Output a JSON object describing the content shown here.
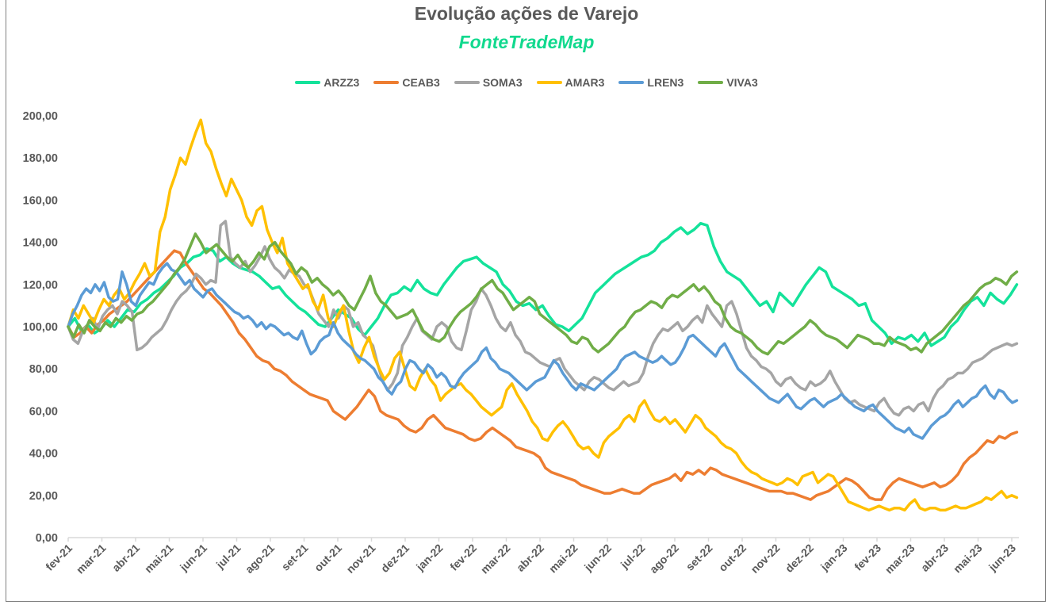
{
  "chart_data": {
    "type": "line",
    "title": "Evolução ações de Varejo",
    "subtitle": "FonteTradeMap",
    "xlabel": "",
    "ylabel": "",
    "ylim": [
      0,
      200
    ],
    "yticks": [
      "0,00",
      "20,00",
      "40,00",
      "60,00",
      "80,00",
      "100,00",
      "120,00",
      "140,00",
      "160,00",
      "180,00",
      "200,00"
    ],
    "ytick_values": [
      0,
      20,
      40,
      60,
      80,
      100,
      120,
      140,
      160,
      180,
      200
    ],
    "categories": [
      "fev-21",
      "mar-21",
      "abr-21",
      "mai-21",
      "jun-21",
      "jul-21",
      "ago-21",
      "set-21",
      "out-21",
      "nov-21",
      "dez-21",
      "jan-22",
      "fev-22",
      "mar-22",
      "abr-22",
      "mai-22",
      "jun-22",
      "jul-22",
      "ago-22",
      "set-22",
      "out-22",
      "nov-22",
      "dez-22",
      "jan-23",
      "fev-23",
      "mar-23",
      "abr-23",
      "mai-23",
      "jun-23"
    ],
    "x_unit": "month index (0 = fev-21), sampled every quarter month",
    "grid": false,
    "legend_position": "top",
    "series": [
      {
        "name": "ARZZ3",
        "color": "#14E29A",
        "values": [
          100,
          104,
          98,
          101,
          97,
          99,
          103,
          100,
          104,
          108,
          107,
          111,
          113,
          116,
          118,
          121,
          124,
          128,
          130,
          133,
          134,
          137,
          136,
          131,
          133,
          130,
          128,
          127,
          126,
          124,
          121,
          118,
          119,
          115,
          112,
          109,
          107,
          104,
          101,
          100,
          104,
          108,
          106,
          104,
          99,
          96,
          100,
          104,
          110,
          115,
          116,
          119,
          117,
          122,
          118,
          116,
          115,
          120,
          124,
          128,
          131,
          132,
          133,
          130,
          128,
          126,
          120,
          117,
          112,
          110,
          111,
          108,
          110,
          105,
          101,
          100,
          98,
          101,
          104,
          110,
          116,
          119,
          122,
          125,
          127,
          129,
          131,
          133,
          134,
          136,
          140,
          142,
          145,
          147,
          144,
          146,
          149,
          148,
          138,
          131,
          126,
          124,
          122,
          118,
          114,
          110,
          112,
          107,
          116,
          113,
          110,
          115,
          120,
          124,
          128,
          126,
          119,
          117,
          115,
          113,
          110,
          111,
          103,
          100,
          97,
          92,
          95,
          94,
          96,
          93,
          97,
          91,
          93,
          95,
          100,
          103,
          108,
          112,
          114,
          110,
          116,
          113,
          111,
          115,
          120
        ]
      },
      {
        "name": "CEAB3",
        "color": "#ED7D31",
        "values": [
          100,
          95,
          97,
          100,
          97,
          101,
          103,
          106,
          108,
          110,
          112,
          115,
          118,
          121,
          124,
          127,
          130,
          133,
          136,
          135,
          130,
          126,
          122,
          118,
          116,
          113,
          110,
          106,
          102,
          97,
          94,
          90,
          86,
          84,
          83,
          80,
          79,
          77,
          74,
          72,
          70,
          68,
          67,
          66,
          65,
          60,
          58,
          56,
          59,
          62,
          66,
          70,
          67,
          60,
          58,
          57,
          56,
          53,
          51,
          50,
          52,
          56,
          58,
          55,
          52,
          51,
          50,
          49,
          47,
          46,
          47,
          50,
          52,
          50,
          48,
          46,
          43,
          42,
          41,
          40,
          38,
          33,
          31,
          30,
          29,
          28,
          27,
          25,
          24,
          23,
          22,
          21,
          21,
          22,
          23,
          22,
          21,
          21,
          23,
          25,
          26,
          27,
          28,
          30,
          27,
          31,
          30,
          32,
          30,
          33,
          32,
          30,
          29,
          28,
          27,
          26,
          25,
          24,
          23,
          22,
          22,
          22,
          21,
          21,
          20,
          19,
          18,
          20,
          21,
          22,
          24,
          26,
          28,
          27,
          25,
          22,
          19,
          18,
          18,
          23,
          26,
          28,
          27,
          26,
          25,
          24,
          25,
          26,
          24,
          25,
          27,
          30,
          35,
          38,
          40,
          43,
          46,
          45,
          48,
          47,
          49,
          50
        ]
      },
      {
        "name": "SOMA3",
        "color": "#A5A5A5",
        "values": [
          100,
          94,
          92,
          98,
          101,
          104,
          99,
          105,
          108,
          110,
          106,
          112,
          110,
          107,
          89,
          90,
          92,
          95,
          97,
          99,
          103,
          108,
          112,
          115,
          117,
          120,
          125,
          123,
          120,
          122,
          121,
          148,
          150,
          133,
          130,
          128,
          131,
          126,
          129,
          133,
          138,
          132,
          128,
          126,
          123,
          127,
          125,
          124,
          120,
          118,
          112,
          106,
          103,
          100,
          108,
          104,
          110,
          108,
          100,
          102,
          96,
          94,
          91,
          82,
          74,
          70,
          73,
          78,
          91,
          95,
          100,
          104,
          98,
          96,
          94,
          100,
          102,
          100,
          93,
          90,
          89,
          98,
          108,
          112,
          118,
          115,
          110,
          104,
          100,
          98,
          102,
          96,
          93,
          88,
          87,
          85,
          83,
          82,
          81,
          84,
          85,
          80,
          77,
          74,
          72,
          70,
          74,
          76,
          75,
          73,
          71,
          70,
          72,
          74,
          72,
          73,
          74,
          78,
          86,
          92,
          96,
          99,
          98,
          100,
          102,
          98,
          100,
          103,
          105,
          102,
          110,
          106,
          103,
          100,
          110,
          112,
          106,
          98,
          90,
          86,
          84,
          81,
          80,
          78,
          74,
          72,
          75,
          76,
          73,
          71,
          70,
          74,
          72,
          73,
          75,
          79,
          74,
          70,
          66,
          64,
          65,
          63,
          62,
          61,
          60,
          64,
          66,
          62,
          59,
          58,
          61,
          62,
          60,
          63,
          64,
          60,
          66,
          70,
          72,
          75,
          76,
          78,
          78,
          80,
          83,
          84,
          85,
          87,
          89,
          90,
          91,
          92,
          91,
          92
        ]
      },
      {
        "name": "AMAR3",
        "color": "#FFC000",
        "values": [
          100,
          108,
          104,
          110,
          106,
          102,
          108,
          113,
          110,
          115,
          118,
          113,
          116,
          121,
          125,
          130,
          124,
          126,
          145,
          152,
          165,
          172,
          180,
          177,
          185,
          192,
          198,
          187,
          183,
          175,
          168,
          162,
          170,
          165,
          160,
          152,
          148,
          155,
          157,
          146,
          140,
          135,
          142,
          130,
          126,
          122,
          118,
          120,
          112,
          108,
          115,
          104,
          100,
          106,
          110,
          98,
          88,
          83,
          90,
          95,
          86,
          80,
          75,
          78,
          85,
          88,
          80,
          72,
          70,
          76,
          80,
          75,
          72,
          65,
          68,
          70,
          72,
          73,
          70,
          68,
          65,
          62,
          60,
          58,
          60,
          62,
          70,
          73,
          68,
          64,
          60,
          55,
          52,
          47,
          46,
          50,
          53,
          55,
          52,
          48,
          44,
          42,
          43,
          40,
          38,
          45,
          48,
          50,
          52,
          56,
          58,
          55,
          62,
          65,
          60,
          56,
          55,
          57,
          54,
          56,
          53,
          50,
          54,
          58,
          56,
          52,
          50,
          48,
          45,
          43,
          42,
          40,
          36,
          33,
          31,
          30,
          28,
          27,
          26,
          25,
          26,
          28,
          27,
          25,
          29,
          30,
          31,
          26,
          28,
          30,
          29,
          25,
          21,
          17,
          16,
          15,
          14,
          13,
          14,
          15,
          14,
          13,
          14,
          14,
          13,
          16,
          18,
          14,
          13,
          14,
          14,
          13,
          13,
          14,
          15,
          14,
          14,
          15,
          16,
          17,
          19,
          18,
          20,
          22,
          19,
          20,
          19
        ]
      },
      {
        "name": "LREN3",
        "color": "#5B9BD5",
        "values": [
          100,
          106,
          110,
          115,
          118,
          116,
          120,
          117,
          121,
          114,
          112,
          113,
          126,
          120,
          112,
          110,
          115,
          118,
          121,
          120,
          125,
          128,
          130,
          127,
          126,
          123,
          120,
          122,
          118,
          116,
          114,
          117,
          118,
          115,
          113,
          111,
          109,
          107,
          106,
          104,
          105,
          103,
          100,
          102,
          99,
          101,
          100,
          98,
          96,
          97,
          95,
          94,
          98,
          92,
          87,
          89,
          93,
          95,
          96,
          102,
          97,
          94,
          92,
          90,
          87,
          85,
          84,
          82,
          80,
          76,
          74,
          70,
          68,
          72,
          74,
          80,
          84,
          83,
          80,
          78,
          82,
          80,
          76,
          78,
          76,
          72,
          71,
          75,
          78,
          80,
          82,
          84,
          88,
          90,
          85,
          83,
          80,
          79,
          78,
          76,
          74,
          72,
          70,
          72,
          74,
          75,
          76,
          80,
          84,
          82,
          78,
          75,
          72,
          70,
          73,
          72,
          71,
          70,
          72,
          74,
          76,
          78,
          80,
          84,
          86,
          87,
          88,
          86,
          85,
          84,
          83,
          84,
          86,
          84,
          82,
          83,
          86,
          90,
          95,
          96,
          94,
          92,
          90,
          88,
          86,
          90,
          92,
          88,
          84,
          80,
          78,
          76,
          74,
          72,
          70,
          68,
          66,
          65,
          64,
          66,
          68,
          65,
          62,
          61,
          63,
          65,
          66,
          64,
          62,
          64,
          65,
          66,
          68,
          66,
          64,
          62,
          61,
          60,
          62,
          63,
          60,
          58,
          56,
          54,
          52,
          51,
          50,
          52,
          49,
          48,
          47,
          50,
          53,
          55,
          57,
          58,
          60,
          63,
          65,
          62,
          64,
          66,
          67,
          70,
          72,
          68,
          66,
          70,
          69,
          66,
          64,
          65
        ]
      },
      {
        "name": "VIVA3",
        "color": "#70AD47",
        "values": [
          100,
          95,
          101,
          97,
          103,
          100,
          98,
          102,
          100,
          104,
          102,
          105,
          103,
          106,
          107,
          110,
          112,
          115,
          118,
          121,
          125,
          128,
          132,
          138,
          144,
          140,
          135,
          137,
          139,
          136,
          133,
          131,
          134,
          130,
          128,
          131,
          135,
          132,
          138,
          140,
          136,
          133,
          130,
          125,
          128,
          126,
          121,
          123,
          120,
          118,
          115,
          117,
          114,
          110,
          108,
          113,
          118,
          124,
          116,
          112,
          110,
          107,
          104,
          105,
          106,
          108,
          103,
          98,
          96,
          94,
          93,
          95,
          100,
          104,
          107,
          109,
          111,
          114,
          118,
          120,
          122,
          118,
          116,
          112,
          108,
          110,
          112,
          114,
          112,
          106,
          104,
          102,
          100,
          98,
          96,
          93,
          92,
          95,
          94,
          90,
          88,
          90,
          92,
          95,
          98,
          100,
          104,
          107,
          108,
          110,
          112,
          111,
          109,
          113,
          115,
          114,
          116,
          118,
          120,
          117,
          119,
          116,
          112,
          110,
          104,
          100,
          98,
          97,
          95,
          93,
          90,
          88,
          87,
          90,
          93,
          92,
          94,
          96,
          98,
          100,
          103,
          101,
          98,
          96,
          95,
          94,
          92,
          90,
          93,
          96,
          95,
          94,
          92,
          92,
          91,
          95,
          93,
          92,
          91,
          89,
          90,
          88,
          92,
          94,
          96,
          98,
          101,
          104,
          107,
          110,
          112,
          115,
          118,
          120,
          121,
          123,
          122,
          120,
          124,
          126
        ]
      }
    ]
  }
}
